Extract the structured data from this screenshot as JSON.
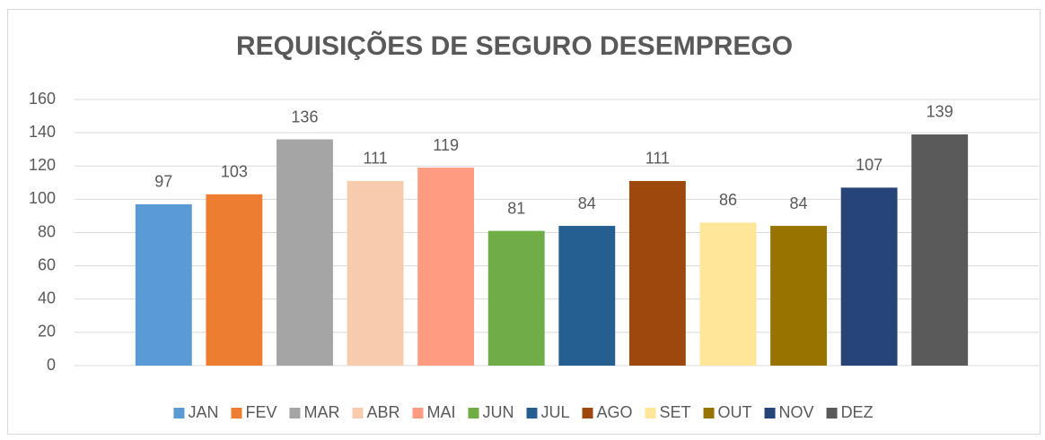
{
  "chart_data": {
    "type": "bar",
    "title": "REQUISIÇÕES DE SEGURO DESEMPREGO",
    "categories": [
      "JAN",
      "FEV",
      "MAR",
      "ABR",
      "MAI",
      "JUN",
      "JUL",
      "AGO",
      "SET",
      "OUT",
      "NOV",
      "DEZ"
    ],
    "values": [
      97,
      103,
      136,
      111,
      119,
      81,
      84,
      111,
      86,
      84,
      107,
      139
    ],
    "colors": [
      "#5b9bd5",
      "#ed7d31",
      "#a5a5a5",
      "#f8cbad",
      "#ff9b80",
      "#70ad47",
      "#255e91",
      "#9e480e",
      "#ffe699",
      "#997300",
      "#264478",
      "#5a5a5a"
    ],
    "ylim": [
      0,
      160
    ],
    "yticks": [
      0,
      20,
      40,
      60,
      80,
      100,
      120,
      140,
      160
    ],
    "grid": true,
    "legend": "bottom"
  }
}
